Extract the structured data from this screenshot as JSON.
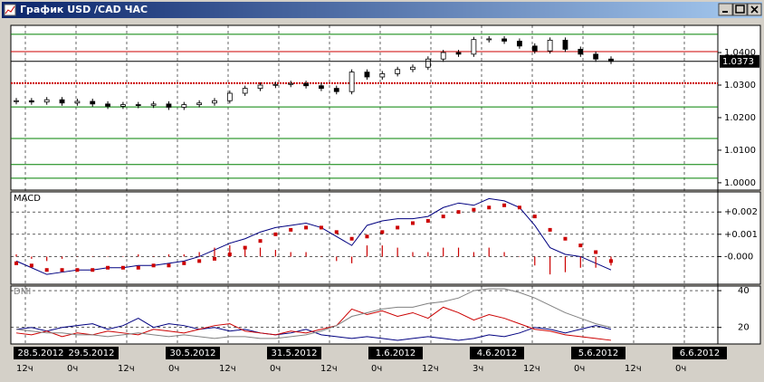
{
  "window": {
    "title": "График USD /CAD ЧАС"
  },
  "time_axis": {
    "time_labels": [
      "12ч",
      "0ч",
      "12ч",
      "0ч",
      "12ч",
      "0ч",
      "12ч",
      "0ч",
      "12ч",
      "3ч",
      "12ч",
      "0ч",
      "12ч",
      "0ч"
    ],
    "date_labels": [
      "28.5.2012",
      "29.5.2012",
      null,
      "30.5.2012",
      null,
      "31.5.2012",
      null,
      "1.6.2012",
      null,
      "4.6.2012",
      null,
      "5.6.2012",
      null,
      "6.6.2012"
    ]
  },
  "chart_data": [
    {
      "type": "candlestick",
      "color": "#000000",
      "values": [
        1.0252,
        1.0248,
        1.0255,
        1.0245,
        1.025,
        1.0242,
        1.0235,
        1.024,
        1.0238,
        1.0242,
        1.0232,
        1.024,
        1.0245,
        1.0252,
        1.0275,
        1.029,
        1.03,
        1.0302,
        1.0305,
        1.0298,
        1.029,
        1.028,
        1.034,
        1.0325,
        1.0335,
        1.0348,
        1.0355,
        1.038,
        1.04,
        1.0395,
        1.044,
        1.0442,
        1.0435,
        1.042,
        1.0405,
        1.0438,
        1.041,
        1.0395,
        1.038,
        1.0373
      ],
      "ylim": [
        0.9983,
        1.0478
      ],
      "yticks": [
        {
          "value": 1.04,
          "label": "1.0400"
        },
        {
          "value": 1.03,
          "label": "1.0300"
        },
        {
          "value": 1.02,
          "label": "1.0200"
        },
        {
          "value": 1.01,
          "label": "1.0100"
        },
        {
          "value": 1.0,
          "label": "1.0000"
        }
      ],
      "levels": [
        {
          "value": 1.0456,
          "color": "#008000"
        },
        {
          "value": 1.0403,
          "color": "#cc0000"
        },
        {
          "value": 1.0306,
          "color": "#cc0000",
          "dashed": true
        },
        {
          "value": 1.0233,
          "color": "#008000"
        },
        {
          "value": 1.0136,
          "color": "#008000"
        },
        {
          "value": 1.0056,
          "color": "#008000"
        },
        {
          "value": 1.0014,
          "color": "#008000"
        }
      ],
      "last_price": 1.0373
    },
    {
      "type": "macd",
      "title": "MACD",
      "ylim": [
        -0.0012,
        0.00286
      ],
      "yticks": [
        {
          "value": 0.002,
          "label": "+0.002"
        },
        {
          "value": 0.001,
          "label": "+0.001"
        },
        {
          "value": 0,
          "label": "-0.000"
        }
      ],
      "grid": true,
      "series": [
        {
          "style": "line",
          "color": "#000080",
          "values": [
            -0.0002,
            -0.0005,
            -0.0008,
            -0.0007,
            -0.0006,
            -0.0006,
            -0.0005,
            -0.0005,
            -0.0004,
            -0.0004,
            -0.0003,
            -0.0002,
            0.0,
            0.0003,
            0.0006,
            0.0008,
            0.0011,
            0.0013,
            0.0014,
            0.0015,
            0.0013,
            0.0009,
            0.0005,
            0.0014,
            0.0016,
            0.0017,
            0.0017,
            0.0018,
            0.0022,
            0.0024,
            0.0023,
            0.0026,
            0.0025,
            0.0022,
            0.0014,
            0.0004,
            0.0001,
            0.0,
            -0.0003,
            -0.0006
          ]
        },
        {
          "style": "dots",
          "color": "#cc0000",
          "values": [
            -0.0003,
            -0.0004,
            -0.0006,
            -0.0006,
            -0.0006,
            -0.0006,
            -0.0005,
            -0.0005,
            -0.0005,
            -0.0004,
            -0.0004,
            -0.0003,
            -0.0002,
            -0.0001,
            0.0001,
            0.0004,
            0.0007,
            0.001,
            0.0012,
            0.0013,
            0.0013,
            0.0011,
            0.0008,
            0.0009,
            0.0011,
            0.0013,
            0.0015,
            0.0016,
            0.0018,
            0.002,
            0.0021,
            0.0022,
            0.0023,
            0.0022,
            0.0018,
            0.0012,
            0.0008,
            0.0005,
            0.0002,
            -0.0002
          ]
        },
        {
          "style": "bars",
          "color": "#cc0000",
          "values": [
            0.0001,
            -0.0001,
            -0.0002,
            -0.0001,
            0,
            0,
            0,
            0,
            0.0001,
            0,
            0.0001,
            0.0001,
            0.0002,
            0.0004,
            0.0005,
            0.0004,
            0.0004,
            0.0003,
            0.0002,
            0.0002,
            0,
            -0.0002,
            -0.0003,
            0.0005,
            0.0005,
            0.0004,
            0.0002,
            0.0002,
            0.0004,
            0.0004,
            0.0002,
            0.0004,
            0.0002,
            0,
            -0.0004,
            -0.0008,
            -0.0007,
            -0.0005,
            -0.0005,
            -0.0004
          ]
        }
      ]
    },
    {
      "type": "line",
      "title": "DMI",
      "ylim": [
        11,
        42.5
      ],
      "yticks": [
        40,
        20
      ],
      "grid": true,
      "series": [
        {
          "color": "#000080",
          "values": [
            19,
            20,
            18,
            20,
            21,
            22,
            19,
            21,
            25,
            20,
            22,
            21,
            19,
            20,
            18,
            19,
            17,
            16,
            17,
            19,
            16,
            15,
            14,
            15,
            14,
            13,
            14,
            15,
            14,
            13,
            14,
            16,
            15,
            17,
            20,
            19,
            17,
            19,
            21,
            19
          ]
        },
        {
          "color": "#cc0000",
          "values": [
            17,
            16,
            18,
            15,
            17,
            16,
            18,
            17,
            16,
            19,
            18,
            17,
            19,
            21,
            22,
            18,
            17,
            16,
            18,
            17,
            19,
            21,
            30,
            27,
            29,
            26,
            28,
            25,
            31,
            28,
            24,
            27,
            25,
            22,
            19,
            18,
            16,
            15,
            14,
            13
          ]
        },
        {
          "color": "#808080",
          "values": [
            19,
            18,
            17,
            17,
            16,
            16,
            15,
            16,
            17,
            16,
            15,
            16,
            15,
            14,
            15,
            15,
            14,
            14,
            15,
            16,
            18,
            21,
            26,
            28,
            30,
            31,
            31,
            33,
            34,
            36,
            40,
            41,
            41,
            39,
            36,
            32,
            28,
            25,
            22,
            20
          ]
        }
      ]
    }
  ]
}
